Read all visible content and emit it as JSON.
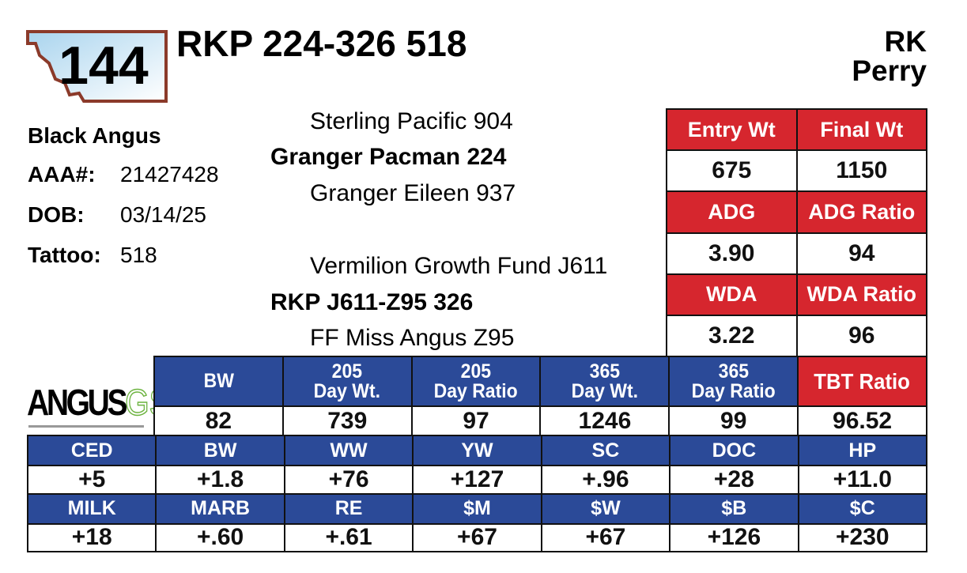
{
  "lot": "144",
  "title": "RKP 224-326 518",
  "owner": [
    "RK",
    "Perry"
  ],
  "info": {
    "breed": "Black Angus",
    "rows": [
      [
        "AAA#:",
        "21427428"
      ],
      [
        "DOB:",
        "03/14/25"
      ],
      [
        "Tattoo:",
        "518"
      ]
    ]
  },
  "pedigree": {
    "sire_sire": "Sterling Pacific 904",
    "sire": "Granger Pacman 224",
    "sire_dam": "Granger Eileen 937",
    "dam_sire": "Vermilion Growth Fund J611",
    "dam": "RKP J611-Z95 326",
    "dam_dam": "FF Miss Angus Z95"
  },
  "performance": [
    {
      "headers": [
        "Entry Wt",
        "Final Wt"
      ],
      "values": [
        "675",
        "1150"
      ]
    },
    {
      "headers": [
        "ADG",
        "ADG Ratio"
      ],
      "values": [
        "3.90",
        "94"
      ]
    },
    {
      "headers": [
        "WDA",
        "WDA Ratio"
      ],
      "values": [
        "3.22",
        "96"
      ]
    }
  ],
  "logo": {
    "main": "ANGUS",
    "accent": "GS"
  },
  "weights": {
    "headers": [
      [
        "BW"
      ],
      [
        "205",
        "Day Wt."
      ],
      [
        "205",
        "Day Ratio"
      ],
      [
        "365",
        "Day Wt."
      ],
      [
        "365",
        "Day Ratio"
      ],
      [
        "TBT Ratio"
      ]
    ],
    "values": [
      "82",
      "739",
      "97",
      "1246",
      "99",
      "96.52"
    ]
  },
  "epds": [
    {
      "headers": [
        "CED",
        "BW",
        "WW",
        "YW",
        "SC",
        "DOC",
        "HP"
      ],
      "values": [
        "+5",
        "+1.8",
        "+76",
        "+127",
        "+.96",
        "+28",
        "+11.0"
      ]
    },
    {
      "headers": [
        "MILK",
        "MARB",
        "RE",
        "$M",
        "$W",
        "$B",
        "$C"
      ],
      "values": [
        "+18",
        "+.60",
        "+.61",
        "+67",
        "+67",
        "+126",
        "+230"
      ]
    }
  ]
}
